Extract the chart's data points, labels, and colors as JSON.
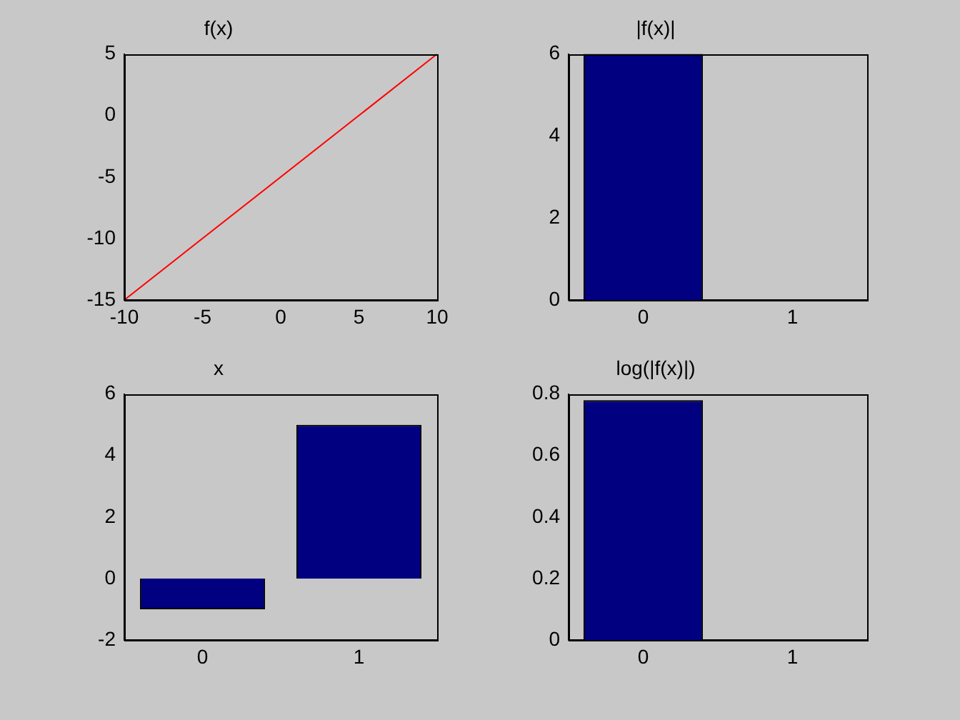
{
  "chart_data": [
    {
      "type": "line",
      "title": "f(x)",
      "x": [
        -10,
        10
      ],
      "series": [
        {
          "color": "#ff0000",
          "values": [
            -15,
            5
          ]
        }
      ],
      "xlim": [
        -10,
        10
      ],
      "xticks": [
        -10,
        -5,
        0,
        5,
        10
      ],
      "ylim": [
        -15,
        5
      ],
      "yticks": [
        -15,
        -10,
        -5,
        0,
        5
      ],
      "marker": "none"
    },
    {
      "type": "bar",
      "title": "|f(x)|",
      "categories": [
        "0",
        "1"
      ],
      "values": [
        6,
        0
      ],
      "color": "#000080",
      "ylim": [
        0,
        6
      ],
      "yticks": [
        0,
        2,
        4,
        6
      ]
    },
    {
      "type": "bar",
      "title": "x",
      "categories": [
        "0",
        "1"
      ],
      "values": [
        -1,
        5
      ],
      "color": "#000080",
      "ylim": [
        -2,
        6
      ],
      "yticks": [
        -2,
        0,
        2,
        4,
        6
      ]
    },
    {
      "type": "bar",
      "title": "log(|f(x)|)",
      "categories": [
        "0",
        "1"
      ],
      "values": [
        0.78,
        null
      ],
      "color": "#000080",
      "ylim": [
        0,
        0.8
      ],
      "yticks": [
        0,
        0.2,
        0.4,
        0.6,
        0.8
      ]
    }
  ]
}
